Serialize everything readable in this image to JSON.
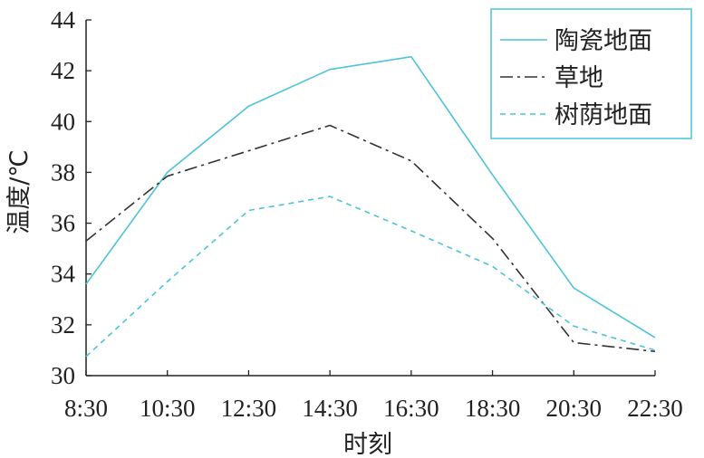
{
  "chart_data": {
    "type": "line",
    "x": [
      "8:30",
      "10:30",
      "12:30",
      "14:30",
      "16:30",
      "18:30",
      "20:30",
      "22:30"
    ],
    "ylabel": "温度/℃",
    "xlabel": "时刻",
    "ylim": [
      30,
      44
    ],
    "yticks": [
      30,
      32,
      34,
      36,
      38,
      40,
      42,
      44
    ],
    "grid": false,
    "legend_position": "top-right",
    "series": [
      {
        "name": "陶瓷地面",
        "style": "solid",
        "color": "#4cc3d9",
        "values": [
          33.6,
          38.0,
          40.6,
          42.05,
          42.55,
          37.9,
          33.45,
          31.5
        ]
      },
      {
        "name": "草地",
        "style": "dashdot",
        "color": "#333333",
        "values": [
          35.3,
          37.85,
          38.85,
          39.85,
          38.45,
          35.4,
          31.3,
          30.95
        ]
      },
      {
        "name": "树荫地面",
        "style": "dashed",
        "color": "#4cc3d9",
        "values": [
          30.75,
          33.7,
          36.5,
          37.05,
          35.7,
          34.3,
          31.95,
          31.0
        ]
      }
    ]
  }
}
